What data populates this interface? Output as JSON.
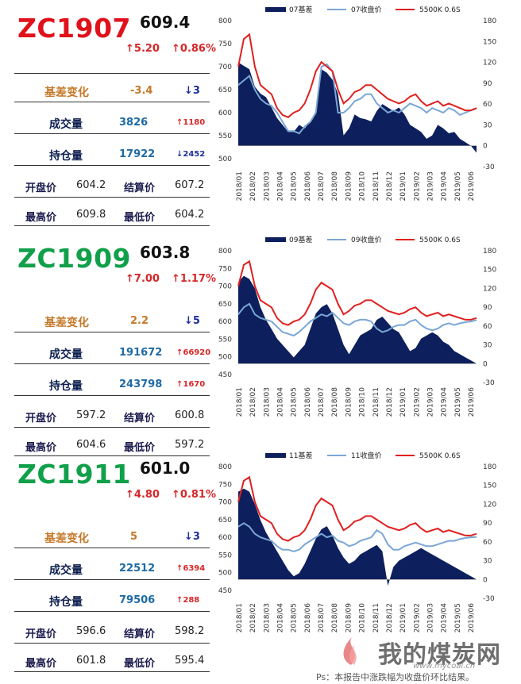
{
  "colors": {
    "up": "#d62728",
    "down": "#1f2f9e",
    "orange": "#c5792a",
    "blue_val": "#1f6aa5",
    "navy": "#0d1f4f",
    "basis_fill": "#0d1f5c",
    "close_line": "#7aa7d6",
    "spot_line": "#e02020",
    "code_red": "#e0111b",
    "code_green": "#11a04a"
  },
  "labels": {
    "basis_change": "基差变化",
    "volume": "成交量",
    "open_interest": "持仓量",
    "open": "开盘价",
    "settle": "结算价",
    "high": "最高价",
    "low": "最低价"
  },
  "sections": [
    {
      "code": "ZC1907",
      "code_color": "#e0111b",
      "price": "609.4",
      "change": "↑5.20",
      "change_pct": "↑0.86%",
      "basis_change": "-3.4",
      "basis_change_arrow": "↓3",
      "volume": "3826",
      "volume_chg": "↑1180",
      "open_interest": "17922",
      "oi_chg": "↓2452",
      "open": "604.2",
      "settle": "607.2",
      "high": "609.8",
      "low": "604.2",
      "legend_basis": "07基差",
      "legend_close": "07收盘价",
      "legend_spot": "5500K 0.6S",
      "left_ticks": [
        "800",
        "750",
        "700",
        "650",
        "600",
        "550",
        "500"
      ],
      "right_ticks": [
        "180",
        "150",
        "120",
        "90",
        "60",
        "30",
        "0",
        "-30"
      ]
    },
    {
      "code": "ZC1909",
      "code_color": "#11a04a",
      "price": "603.8",
      "change": "↑7.00",
      "change_pct": "↑1.17%",
      "basis_change": "2.2",
      "basis_change_arrow": "↓5",
      "volume": "191672",
      "volume_chg": "↑66920",
      "open_interest": "243798",
      "oi_chg": "↑1670",
      "open": "597.2",
      "settle": "600.8",
      "high": "604.6",
      "low": "597.2",
      "legend_basis": "09基差",
      "legend_close": "09收盘价",
      "legend_spot": "5500K 0.6S",
      "left_ticks": [
        "800",
        "750",
        "700",
        "650",
        "600",
        "550",
        "500",
        "450"
      ],
      "right_ticks": [
        "180",
        "150",
        "120",
        "90",
        "60",
        "30",
        "0",
        "-30"
      ]
    },
    {
      "code": "ZC1911",
      "code_color": "#11a04a",
      "price": "601.0",
      "change": "↑4.80",
      "change_pct": "↑0.81%",
      "basis_change": "5",
      "basis_change_arrow": "↓3",
      "volume": "22512",
      "volume_chg": "↑6394",
      "open_interest": "79506",
      "oi_chg": "↑288",
      "open": "596.6",
      "settle": "598.2",
      "high": "601.8",
      "low": "595.4",
      "legend_basis": "11基差",
      "legend_close": "11收盘价",
      "legend_spot": "5500K 0.6S",
      "left_ticks": [
        "800",
        "750",
        "700",
        "650",
        "600",
        "550",
        "500",
        "450"
      ],
      "right_ticks": [
        "180",
        "150",
        "120",
        "90",
        "60",
        "30",
        "0",
        "-30"
      ]
    }
  ],
  "x_ticks": [
    "2018/01",
    "2018/02",
    "2018/03",
    "2018/04",
    "2018/05",
    "2018/06",
    "2018/07",
    "2018/08",
    "2018/09",
    "2018/10",
    "2018/11",
    "2018/12",
    "2019/01",
    "2019/02",
    "2019/03",
    "2019/04",
    "2019/05",
    "2019/06"
  ],
  "chart_data": [
    {
      "type": "area",
      "title": "",
      "ylim_left": [
        500,
        800
      ],
      "ylim_right": [
        -30,
        180
      ],
      "series": [
        {
          "name": "07基差",
          "axis": "right",
          "values": [
            120,
            115,
            110,
            85,
            75,
            70,
            55,
            40,
            30,
            20,
            20,
            30,
            25,
            35,
            50,
            110,
            105,
            95,
            75,
            15,
            25,
            45,
            40,
            38,
            35,
            50,
            60,
            55,
            50,
            55,
            45,
            30,
            25,
            20,
            10,
            15,
            30,
            25,
            18,
            20,
            10,
            5,
            0,
            -10
          ]
        },
        {
          "name": "07收盘价",
          "axis": "left",
          "values": [
            660,
            670,
            680,
            650,
            630,
            620,
            615,
            600,
            580,
            560,
            560,
            555,
            570,
            580,
            600,
            700,
            705,
            690,
            600,
            600,
            610,
            625,
            630,
            640,
            640,
            620,
            610,
            600,
            605,
            600,
            610,
            620,
            615,
            610,
            600,
            610,
            605,
            600,
            610,
            605,
            595,
            600,
            605,
            609
          ]
        },
        {
          "name": "5500K 0.6S",
          "axis": "left",
          "values": [
            700,
            760,
            770,
            700,
            660,
            650,
            640,
            610,
            595,
            590,
            600,
            605,
            620,
            650,
            690,
            710,
            700,
            690,
            650,
            620,
            630,
            645,
            650,
            660,
            660,
            650,
            640,
            630,
            625,
            620,
            625,
            635,
            640,
            625,
            615,
            620,
            625,
            615,
            620,
            615,
            610,
            605,
            605,
            610
          ]
        }
      ]
    },
    {
      "type": "area",
      "title": "",
      "ylim_left": [
        450,
        800
      ],
      "ylim_right": [
        -30,
        180
      ],
      "series": [
        {
          "name": "09基差",
          "axis": "right",
          "values": [
            130,
            140,
            135,
            120,
            90,
            70,
            55,
            40,
            30,
            20,
            10,
            20,
            30,
            55,
            80,
            90,
            95,
            80,
            55,
            30,
            15,
            30,
            45,
            50,
            55,
            70,
            75,
            65,
            55,
            50,
            35,
            20,
            25,
            40,
            45,
            50,
            45,
            35,
            30,
            20,
            15,
            10,
            5,
            0
          ]
        },
        {
          "name": "09收盘价",
          "axis": "left",
          "values": [
            620,
            640,
            650,
            620,
            610,
            605,
            600,
            585,
            570,
            565,
            560,
            570,
            585,
            600,
            610,
            620,
            615,
            625,
            610,
            595,
            590,
            600,
            605,
            605,
            600,
            580,
            570,
            575,
            585,
            590,
            590,
            600,
            605,
            590,
            580,
            575,
            580,
            590,
            595,
            590,
            595,
            598,
            600,
            604
          ]
        },
        {
          "name": "5500K 0.6S",
          "axis": "left",
          "values": [
            700,
            760,
            770,
            700,
            660,
            650,
            640,
            610,
            595,
            590,
            600,
            605,
            620,
            650,
            690,
            710,
            700,
            690,
            650,
            620,
            630,
            645,
            650,
            660,
            660,
            650,
            640,
            630,
            625,
            620,
            625,
            635,
            640,
            625,
            615,
            620,
            625,
            615,
            620,
            615,
            610,
            605,
            605,
            610
          ]
        }
      ]
    },
    {
      "type": "area",
      "title": "",
      "ylim_left": [
        450,
        800
      ],
      "ylim_right": [
        -30,
        180
      ],
      "series": [
        {
          "name": "11基差",
          "axis": "right",
          "values": [
            140,
            145,
            140,
            120,
            95,
            75,
            60,
            45,
            30,
            15,
            5,
            10,
            25,
            45,
            65,
            80,
            85,
            70,
            50,
            35,
            25,
            30,
            40,
            45,
            50,
            55,
            45,
            -10,
            20,
            30,
            35,
            40,
            45,
            50,
            45,
            40,
            35,
            30,
            25,
            20,
            15,
            10,
            5,
            0
          ]
        },
        {
          "name": "11收盘价",
          "axis": "left",
          "values": [
            630,
            640,
            630,
            610,
            600,
            595,
            590,
            575,
            565,
            565,
            560,
            565,
            580,
            590,
            600,
            610,
            600,
            605,
            590,
            585,
            575,
            580,
            590,
            595,
            600,
            620,
            610,
            580,
            565,
            565,
            575,
            580,
            585,
            580,
            575,
            575,
            580,
            585,
            590,
            590,
            595,
            598,
            600,
            601
          ]
        },
        {
          "name": "5500K 0.6S",
          "axis": "left",
          "values": [
            700,
            760,
            770,
            700,
            660,
            650,
            640,
            610,
            595,
            590,
            600,
            605,
            620,
            650,
            690,
            710,
            700,
            690,
            650,
            620,
            630,
            645,
            650,
            660,
            660,
            650,
            640,
            630,
            625,
            620,
            625,
            635,
            640,
            625,
            615,
            620,
            625,
            615,
            620,
            615,
            610,
            605,
            605,
            610
          ]
        }
      ]
    }
  ],
  "footer": {
    "note": "Ps：本报告中涨跌幅为收盘价环比结果。",
    "logo_text": "我的煤炭网",
    "logo_url": "www.mycoal.cn"
  }
}
